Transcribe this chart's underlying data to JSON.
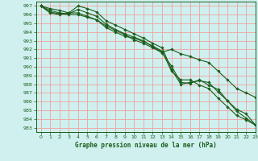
{
  "title": "Graphe pression niveau de la mer (hPa)",
  "bg_color": "#cff0ee",
  "grid_color_major": "#f0a0a0",
  "grid_color_minor": "#e8e8e8",
  "line_color": "#1a5c1a",
  "ylim": [
    982.5,
    997.5
  ],
  "xlim": [
    -0.5,
    23
  ],
  "yticks": [
    983,
    984,
    985,
    986,
    987,
    988,
    989,
    990,
    991,
    992,
    993,
    994,
    995,
    996,
    997
  ],
  "xticks": [
    0,
    1,
    2,
    3,
    4,
    5,
    6,
    7,
    8,
    9,
    10,
    11,
    12,
    13,
    14,
    15,
    16,
    17,
    18,
    19,
    20,
    21,
    22,
    23
  ],
  "series": [
    [
      997.0,
      996.7,
      996.5,
      996.2,
      997.0,
      996.7,
      996.3,
      995.3,
      994.8,
      994.3,
      993.8,
      993.3,
      992.7,
      992.2,
      989.7,
      988.0,
      988.2,
      988.4,
      988.2,
      987.1,
      986.1,
      985.1,
      984.6,
      983.3
    ],
    [
      997.0,
      996.2,
      996.0,
      996.2,
      996.2,
      995.8,
      995.4,
      994.5,
      994.0,
      993.5,
      993.3,
      992.9,
      992.4,
      991.8,
      989.5,
      988.5,
      988.5,
      987.9,
      987.5,
      986.4,
      985.4,
      984.4,
      983.9,
      983.3
    ],
    [
      997.0,
      996.5,
      996.2,
      996.1,
      996.6,
      996.2,
      995.8,
      994.9,
      994.3,
      993.8,
      993.4,
      993.0,
      992.3,
      991.7,
      992.0,
      991.5,
      991.2,
      990.8,
      990.5,
      989.5,
      988.5,
      987.5,
      987.0,
      986.5
    ],
    [
      997.0,
      996.3,
      996.1,
      996.0,
      996.0,
      995.7,
      995.4,
      994.7,
      994.2,
      993.7,
      993.1,
      992.7,
      992.2,
      991.6,
      990.1,
      988.2,
      988.1,
      988.5,
      987.9,
      987.4,
      986.1,
      984.9,
      984.1,
      983.3
    ]
  ]
}
